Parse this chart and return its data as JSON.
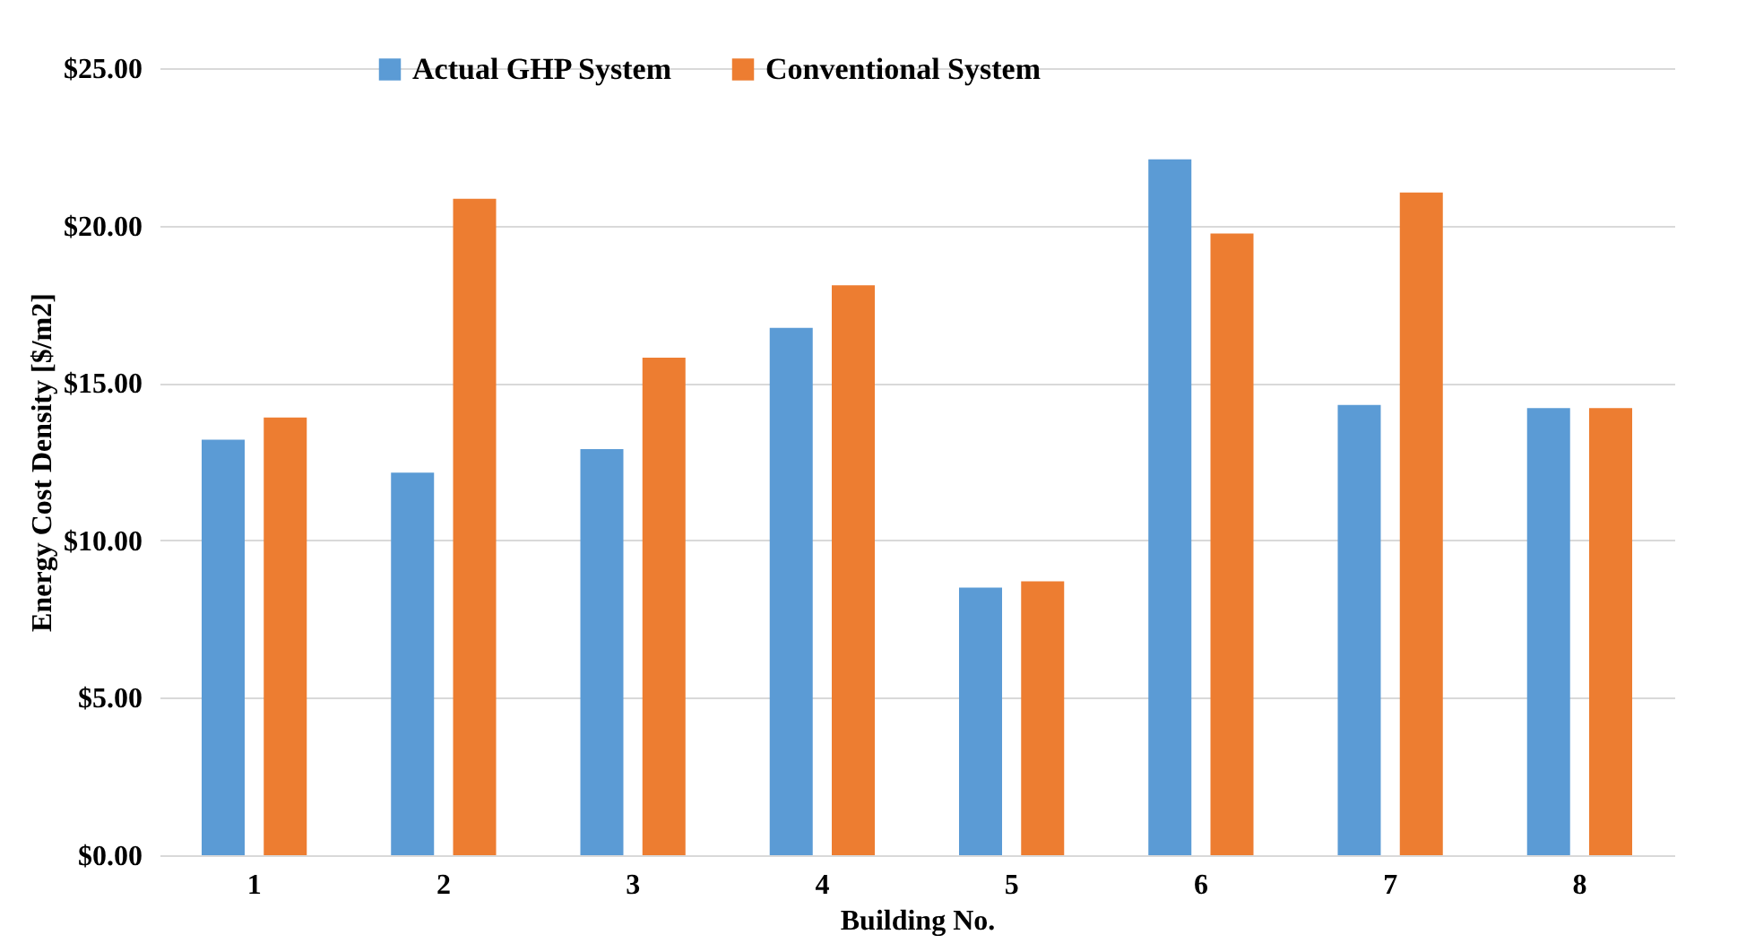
{
  "chart_data": {
    "type": "bar",
    "xlabel": "Building No.",
    "ylabel": "Energy Cost Density [$/m2]",
    "categories": [
      "1",
      "2",
      "3",
      "4",
      "5",
      "6",
      "7",
      "8"
    ],
    "series": [
      {
        "name": "Actual GHP System",
        "color": "#5b9bd5",
        "values": [
          13.2,
          12.15,
          12.9,
          16.75,
          8.5,
          22.1,
          14.3,
          14.2
        ]
      },
      {
        "name": "Conventional System",
        "color": "#ed7d31",
        "values": [
          13.9,
          20.85,
          15.8,
          18.1,
          8.7,
          19.75,
          21.05,
          14.2
        ]
      }
    ],
    "ylim": [
      0,
      25
    ],
    "yticks": [
      {
        "value": 0,
        "label": "$0.00"
      },
      {
        "value": 5,
        "label": "$5.00"
      },
      {
        "value": 10,
        "label": "$10.00"
      },
      {
        "value": 15,
        "label": "$15.00"
      },
      {
        "value": 20,
        "label": "$20.00"
      },
      {
        "value": 25,
        "label": "$25.00"
      }
    ],
    "grid": "y",
    "legend": "top left"
  }
}
